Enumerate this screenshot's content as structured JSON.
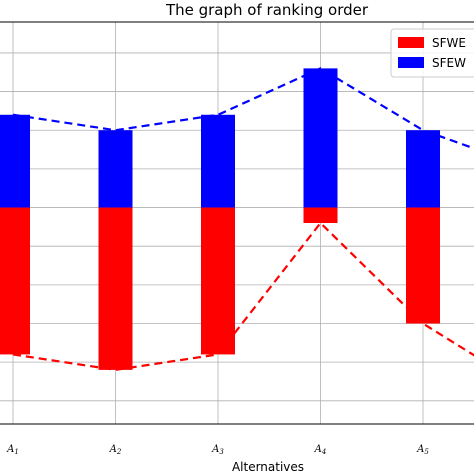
{
  "chart_data": {
    "type": "bar",
    "title": "The graph of ranking order",
    "xlabel": "Alternatives",
    "ylabel": "",
    "categories": [
      {
        "letter": "A",
        "sub": "1"
      },
      {
        "letter": "A",
        "sub": "2"
      },
      {
        "letter": "A",
        "sub": "3"
      },
      {
        "letter": "A",
        "sub": "4"
      },
      {
        "letter": "A",
        "sub": "5"
      }
    ],
    "ylim": [
      0.42,
      0.94
    ],
    "grid": true,
    "legend_position": "top-right",
    "series": [
      {
        "name": "SFWE",
        "color": "#ff0000",
        "values": [
          0.51,
          0.49,
          0.51,
          0.68,
          0.55
        ],
        "line_end": 0.48
      },
      {
        "name": "SFEW",
        "color": "#0000ff",
        "values": [
          0.82,
          0.8,
          0.82,
          0.88,
          0.8
        ],
        "line_end": 0.76
      }
    ],
    "stack_split": 0.7
  }
}
